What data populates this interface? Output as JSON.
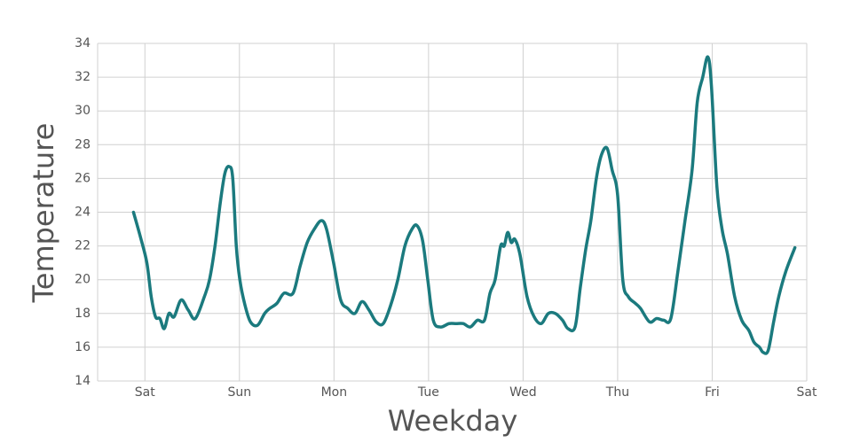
{
  "chart_data": {
    "type": "line",
    "xlabel": "Weekday",
    "ylabel": "Temperature",
    "xlim": [
      -12,
      168
    ],
    "ylim": [
      14,
      34
    ],
    "xticks": [
      {
        "value": 0,
        "label": "Sat"
      },
      {
        "value": 24,
        "label": "Sun"
      },
      {
        "value": 48,
        "label": "Mon"
      },
      {
        "value": 72,
        "label": "Tue"
      },
      {
        "value": 96,
        "label": "Wed"
      },
      {
        "value": 120,
        "label": "Thu"
      },
      {
        "value": 144,
        "label": "Fri"
      },
      {
        "value": 168,
        "label": "Sat"
      }
    ],
    "yticks": [
      14,
      16,
      18,
      20,
      22,
      24,
      26,
      28,
      30,
      32,
      34
    ],
    "grid": true,
    "series": [
      {
        "color": "#1b7a7e",
        "x": [
          -2.9,
          -1.1,
          0.5,
          1.6,
          2.7,
          3.8,
          4.9,
          6.1,
          7.4,
          9.2,
          11.0,
          12.8,
          15.1,
          16.4,
          17.8,
          19.1,
          20.3,
          21.4,
          22.3,
          23.2,
          24.1,
          25.4,
          26.8,
          28.6,
          30.4,
          31.7,
          33.5,
          35.3,
          37.6,
          39.4,
          41.2,
          43.0,
          44.8,
          46.1,
          47.9,
          49.7,
          51.5,
          53.3,
          55.1,
          56.9,
          58.7,
          60.5,
          62.4,
          64.2,
          66.0,
          67.8,
          69.1,
          70.5,
          71.8,
          73.2,
          75.0,
          77.2,
          79.0,
          80.8,
          82.6,
          84.4,
          86.2,
          87.6,
          88.9,
          90.3,
          91.2,
          92.1,
          93.0,
          93.9,
          95.2,
          97.0,
          98.8,
          100.6,
          102.4,
          104.2,
          106.0,
          107.4,
          109.2,
          110.5,
          111.9,
          113.2,
          114.6,
          115.9,
          117.3,
          118.6,
          120.0,
          121.3,
          122.7,
          124.5,
          125.8,
          128.1,
          129.9,
          131.7,
          133.5,
          135.3,
          137.1,
          138.9,
          140.2,
          141.6,
          142.9,
          143.8,
          145.2,
          146.5,
          147.9,
          149.7,
          151.5,
          153.3,
          154.6,
          156.0,
          156.9,
          158.2,
          159.6,
          160.9,
          162.7,
          165.0
        ],
        "values": [
          24,
          22.5,
          21,
          19,
          17.8,
          17.7,
          17.1,
          18,
          17.8,
          18.8,
          18.2,
          17.7,
          19,
          20,
          22,
          24.5,
          26.3,
          26.7,
          26,
          22,
          20,
          18.5,
          17.5,
          17.3,
          18,
          18.3,
          18.6,
          19.2,
          19.2,
          20.8,
          22.2,
          23,
          23.5,
          23,
          21,
          18.8,
          18.3,
          18,
          18.7,
          18.2,
          17.5,
          17.4,
          18.5,
          20,
          22,
          23,
          23.2,
          22.3,
          20,
          17.6,
          17.2,
          17.4,
          17.4,
          17.4,
          17.2,
          17.6,
          17.6,
          19.2,
          20,
          22,
          22,
          22.8,
          22.2,
          22.4,
          21.5,
          19,
          17.8,
          17.4,
          18,
          18,
          17.6,
          17.1,
          17.2,
          19.5,
          21.8,
          23.5,
          26,
          27.4,
          27.8,
          26.5,
          25,
          20,
          19,
          18.6,
          18.3,
          17.5,
          17.7,
          17.6,
          17.7,
          20.5,
          23.5,
          26.5,
          30.5,
          32,
          33.2,
          31.5,
          25.5,
          23,
          21.5,
          19,
          17.6,
          17,
          16.3,
          16,
          15.7,
          15.8,
          17.5,
          19,
          20.5,
          21.9
        ]
      }
    ]
  }
}
